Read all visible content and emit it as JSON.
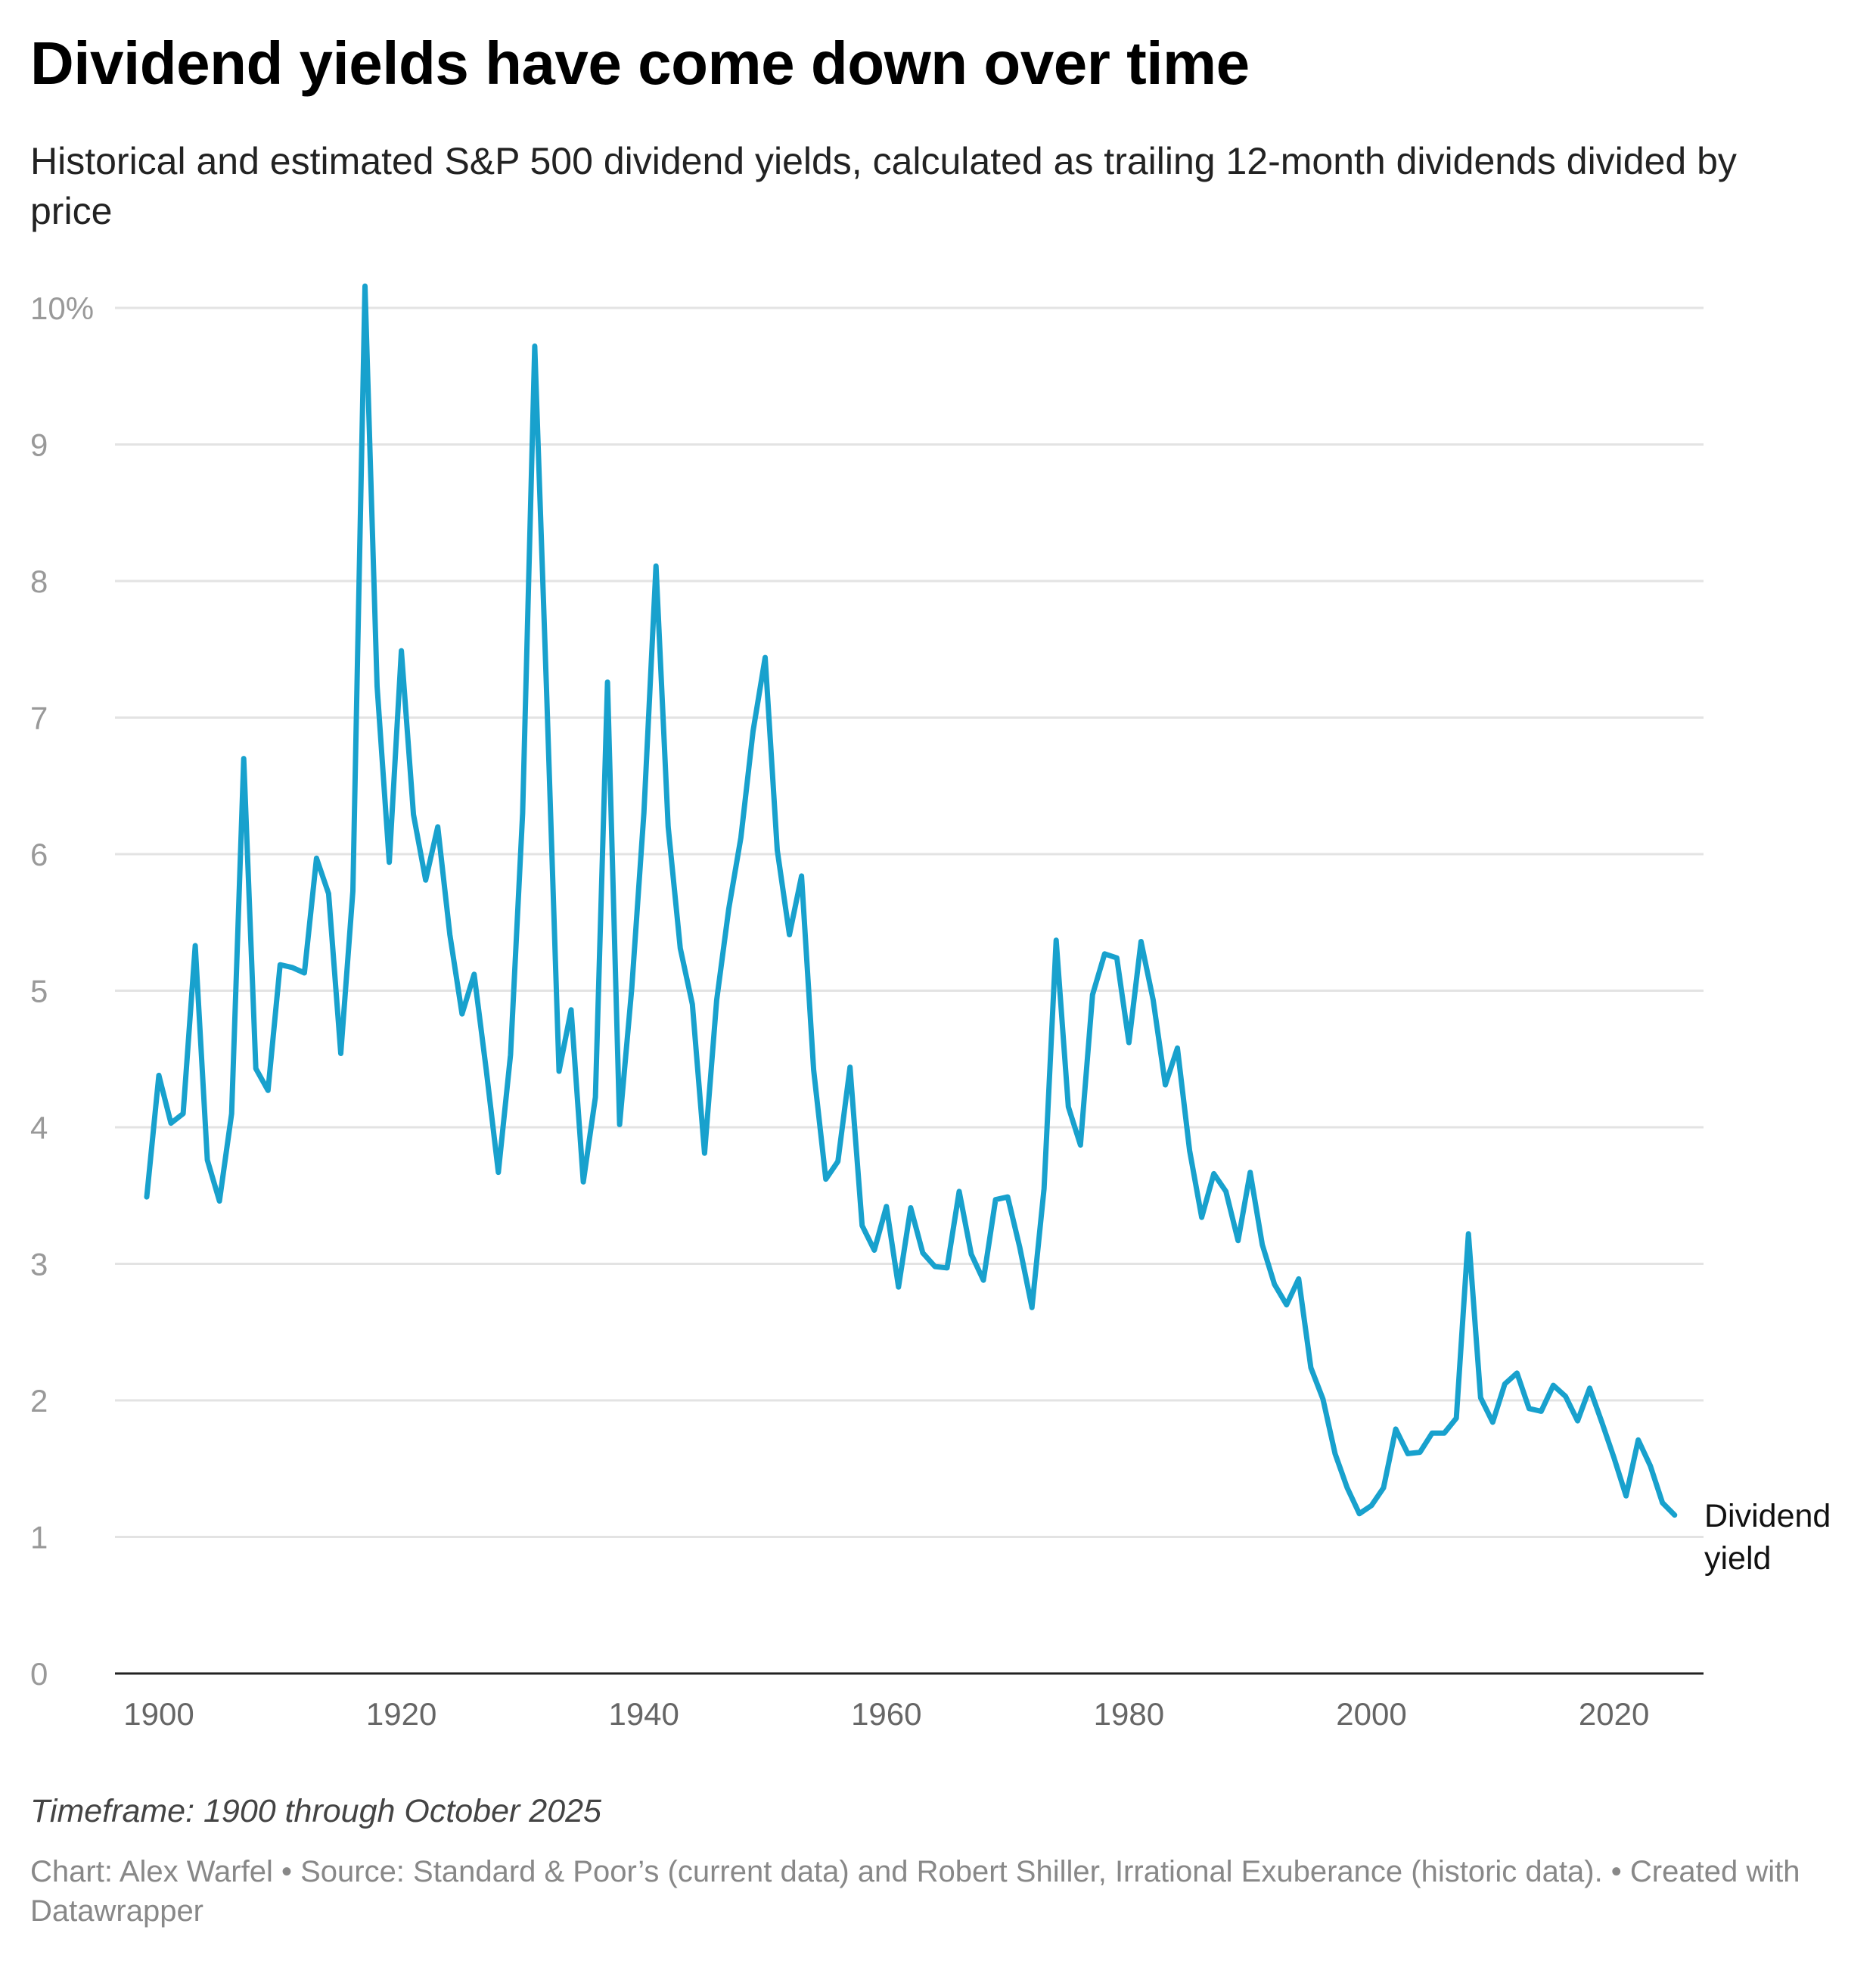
{
  "chart_data": {
    "type": "line",
    "title": "Dividend yields have come down over time",
    "subtitle": "Historical and estimated S&P 500 dividend yields, calculated as trailing 12-month dividends divided by price",
    "xlabel": "",
    "ylabel": "",
    "ylim": [
      0,
      10
    ],
    "xlim": [
      1899,
      2025
    ],
    "grid": true,
    "y_ticks": [
      "0",
      "1",
      "2",
      "3",
      "4",
      "5",
      "6",
      "7",
      "8",
      "9",
      "10%"
    ],
    "x_ticks": [
      "1900",
      "1920",
      "1940",
      "1960",
      "1980",
      "2000",
      "2020"
    ],
    "series": [
      {
        "name": "Dividend yield",
        "label_lines": [
          "Dividend",
          "yield"
        ],
        "color": "#18a1cd",
        "start_year": 1899,
        "values": [
          3.49,
          4.38,
          4.03,
          4.1,
          5.33,
          3.76,
          3.46,
          4.1,
          6.7,
          4.43,
          4.27,
          5.19,
          5.17,
          5.13,
          5.97,
          5.71,
          4.54,
          5.73,
          10.16,
          7.23,
          5.94,
          7.49,
          6.29,
          5.81,
          6.2,
          5.41,
          4.83,
          5.12,
          4.42,
          3.67,
          4.53,
          6.3,
          9.72,
          7.12,
          4.41,
          4.86,
          3.6,
          4.22,
          7.26,
          4.02,
          5.02,
          6.3,
          8.11,
          6.2,
          5.31,
          4.9,
          3.81,
          4.93,
          5.6,
          6.12,
          6.9,
          7.44,
          6.03,
          5.41,
          5.84,
          4.42,
          3.62,
          3.75,
          4.44,
          3.28,
          3.1,
          3.42,
          2.83,
          3.41,
          3.08,
          2.98,
          2.97,
          3.53,
          3.07,
          2.88,
          3.47,
          3.49,
          3.12,
          2.68,
          3.55,
          5.37,
          4.15,
          3.87,
          4.97,
          5.27,
          5.24,
          4.62,
          5.36,
          4.93,
          4.31,
          4.58,
          3.83,
          3.34,
          3.66,
          3.53,
          3.17,
          3.67,
          3.14,
          2.85,
          2.7,
          2.89,
          2.24,
          2.01,
          1.61,
          1.36,
          1.17,
          1.23,
          1.36,
          1.79,
          1.61,
          1.62,
          1.76,
          1.76,
          1.87,
          3.22,
          2.02,
          1.84,
          2.12,
          2.2,
          1.94,
          1.92,
          2.11,
          2.03,
          1.85,
          2.09,
          1.84,
          1.58,
          1.3,
          1.71,
          1.52,
          1.25,
          1.16
        ]
      }
    ]
  },
  "notes": {
    "timeframe": "Timeframe: 1900 through October 2025",
    "source": "Chart: Alex Warfel • Source: Standard & Poor’s (current data) and Robert Shiller, Irrational Exuberance (historic data). • Created with Datawrapper"
  }
}
